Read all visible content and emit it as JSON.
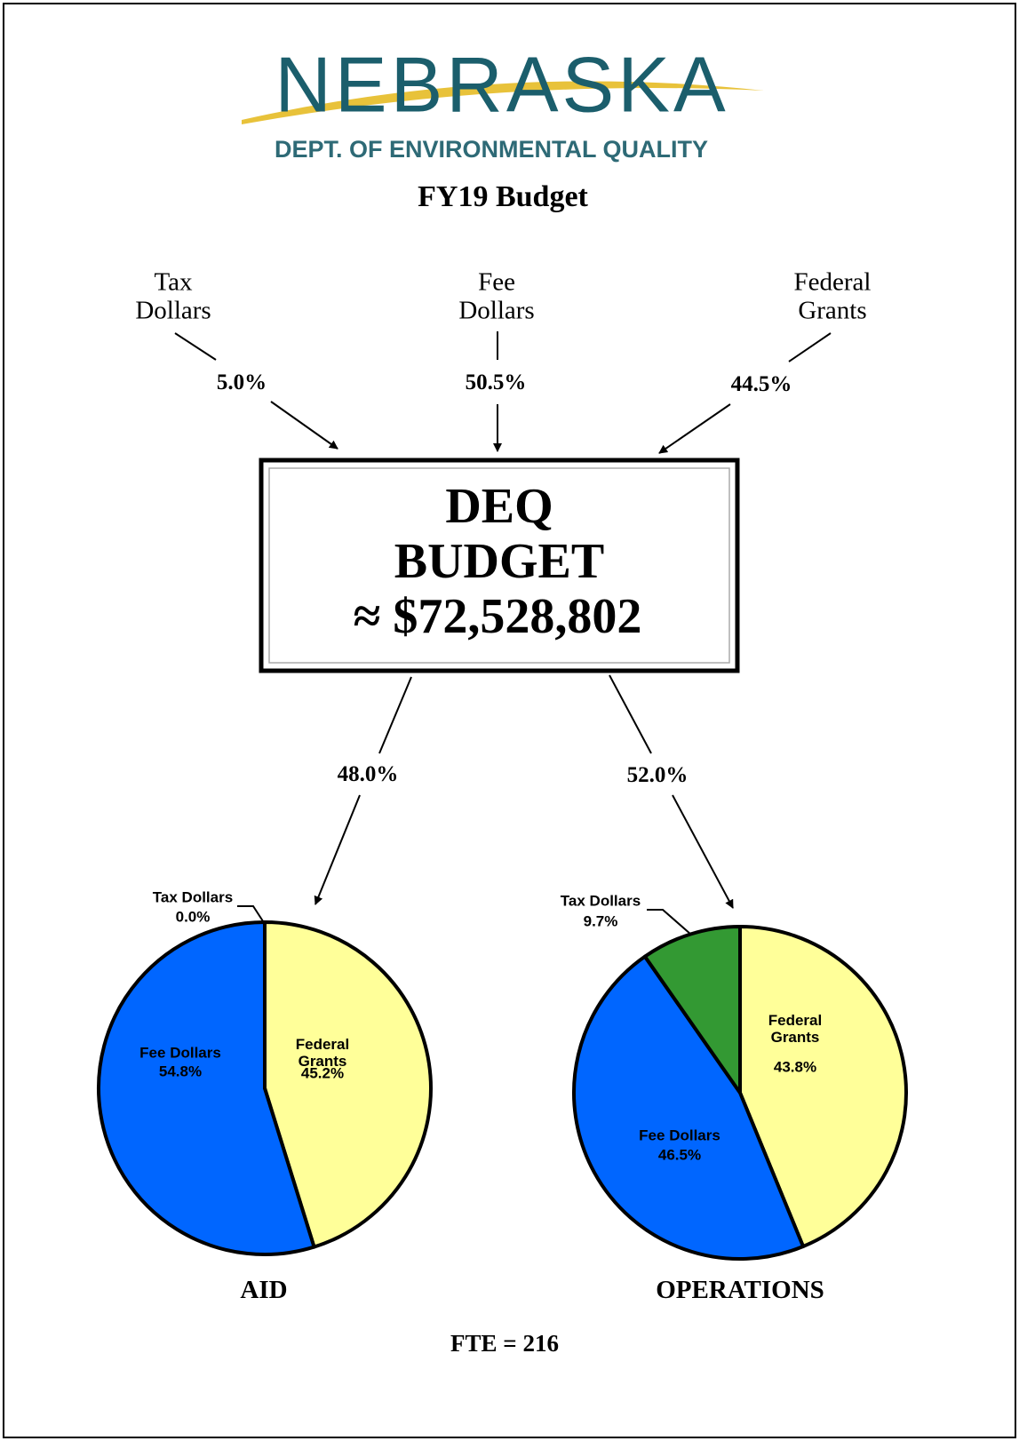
{
  "header": {
    "logo_title": "NEBRASKA",
    "logo_subtitle": "DEPT. OF ENVIRONMENTAL QUALITY",
    "title": "FY19 Budget"
  },
  "sources": [
    {
      "label": "Tax Dollars",
      "share": "5.0%"
    },
    {
      "label": "Fee Dollars",
      "share": "50.5%"
    },
    {
      "label": "Federal Grants",
      "share": "44.5%"
    }
  ],
  "budget": {
    "lines": [
      "DEQ",
      "BUDGET",
      "≈ $72,528,802"
    ]
  },
  "splits": [
    "48.0%",
    "52.0%"
  ],
  "chart_data": [
    {
      "type": "pie",
      "title": "AID",
      "categories": [
        "Federal Grants",
        "Fee Dollars",
        "Tax Dollars"
      ],
      "values": [
        45.2,
        54.8,
        0
      ],
      "value_labels": [
        "45.2%",
        "54.8%",
        "0.0%"
      ],
      "colors": [
        "#ffff99",
        "#0066ff",
        "#339933"
      ]
    },
    {
      "type": "pie",
      "title": "OPERATIONS",
      "categories": [
        "Federal Grants",
        "Fee Dollars",
        "Tax Dollars"
      ],
      "values": [
        43.8,
        46.5,
        9.7
      ],
      "value_labels": [
        "43.8%",
        "46.5%",
        "9.7%"
      ],
      "colors": [
        "#ffff99",
        "#0066ff",
        "#339933"
      ]
    }
  ],
  "footer": "FTE = 216"
}
